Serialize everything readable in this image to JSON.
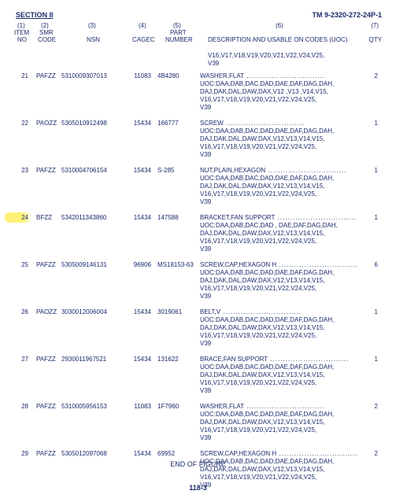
{
  "header": {
    "section": "SECTION II",
    "tm": "TM 9-2320-272-24P-1"
  },
  "cols": {
    "c1a": "(1)",
    "c1b": "ITEM",
    "c1c": "NO",
    "c2a": "(2)",
    "c2b": "SMR",
    "c2c": "CODE",
    "c3a": "(3)",
    "c3b": "NSN",
    "c4a": "(4)",
    "c4b": "CAGEC",
    "c5a": "(5)",
    "c5b": "PART",
    "c5c": "NUMBER",
    "c6a": "(6)",
    "c6b": "DESCRIPTION AND USABLE ON CODES (UOC)",
    "c7a": "(7)",
    "c7b": "QTY"
  },
  "lead": "V16,V17,V18,V19,V20,V21,V22,V24,V25,\nV39",
  "rows": [
    {
      "item": "21",
      "smr": "PAFZZ",
      "nsn": "5310009307013",
      "cage": "11083",
      "part": "4B4280",
      "title": "WASHER,FLAT",
      "qty": "2",
      "uoc": "UOC:DAA,DAB,DAC,DAD,DAE,DAF,DAG,DAH,\nDAJ,DAK,DAL,DAW,DAX,V12 ,V13 ,V14,V15,\nV16,V17,V18,V19,V20,V21,V22,V24,V25,\nV39"
    },
    {
      "item": "22",
      "smr": "PAOZZ",
      "nsn": "5305010912498",
      "cage": "15434",
      "part": "166777",
      "title": "SCREW",
      "qty": "1",
      "uoc": "UOC:DAA,DAB,DAC,DAD,DAE,DAF,DAG,DAH,\nDAJ,DAK,DAL,DAW,DAX,V12,V13,V14,V15,\nV16,V17,V18,V19,V20,V21,V22,V24,V25,\nV39"
    },
    {
      "item": "23",
      "smr": "PAFZZ",
      "nsn": "5310004706154",
      "cage": "15434",
      "part": "S-285",
      "title": "NUT,PLAIN,HEXAGON",
      "qty": "1",
      "uoc": "UOC:DAA,DAB,DAC,DAD,DAE,DAF,DAG,DAH,\nDAJ,DAK,DAL,DAW,DAX,V12,V13,V14,V15,\nV16,V17,V18,V19,V20,V21,V22,V24,V25,\nV39"
    },
    {
      "item": "24",
      "smr": "BFZZ",
      "nsn": "5342011343860",
      "cage": "15434",
      "part": "147588",
      "highlight": true,
      "title": "BRACKET,FAN SUPPORT",
      "qty": "1",
      "uoc": "UOC:DAA,DAB,DAC,DAD , DAE,DAF,DAG,DAH,\nDAJ,DAK,DAL,DAW,DAX,V12,V13,V14,V15,\nV16,V17,V18,V19,V20,V21,V22,V24,V25,\nV39"
    },
    {
      "item": "25",
      "smr": "PAFZZ",
      "nsn": "5305009146131",
      "cage": "96906",
      "part": "MS18153-63",
      "title": "SCREW,CAP,HEXAGON H",
      "qty": "6",
      "uoc": "UOC:DAA,DAB,DAC,DAD,DAE,DAF,DAG,DAH,\nDAJ,DAK,DAL,DAW,DAX,V12,V13,V14,V15,\nV16,V17,V18,V19,V20,V21,V22,V24,V25,\nV39"
    },
    {
      "item": "26",
      "smr": "PAOZZ",
      "nsn": "3030012006004",
      "cage": "15434",
      "part": "3019061",
      "title": "BELT,V",
      "qty": "1",
      "uoc": "UOC:DAA,DAB,DAC,DAD,DAE,DAF,DAG,DAH,\nDAJ,DAK,DAL,DAW,DAX,V12,V13,V14,V15,\nV16,V17,V18,V19,V20,V21,V22,V24,V25,\nV39"
    },
    {
      "item": "27",
      "smr": "PAFZZ",
      "nsn": "2930011967521",
      "cage": "15434",
      "part": "131622",
      "title": "BRACE,FAN SUPPORT",
      "qty": "1",
      "uoc": "UOC:DAA,DAB,DAC,DAD,DAE,DAF,DAG,DAH,\nDAJ,DAK,DAL,DAW,DAX,V12,V13,V14,V15,\nV16,V17,V18,V19,V20,V21,V22,V24,V25,\nV39"
    },
    {
      "item": "28",
      "smr": "PAFZZ",
      "nsn": "5310005956153",
      "cage": "11083",
      "part": "1F7960",
      "title": "WASHER,FLAT",
      "qty": "2",
      "uoc": "UOC:DAA,DAB,DAC,DAD,DAE,DAF,DAG,DAH,\nDAJ,DAK,DAL,DAW,DAX,V12,V13,V14,V15,\nV16,V17,V18,V19,V20,V21,V22,V24,V25,\nV39"
    },
    {
      "item": "29",
      "smr": "PAFZZ",
      "nsn": "5305012097068",
      "cage": "15434",
      "part": "69952",
      "title": "SCREW,CAP,HEXAGON H",
      "qty": "2",
      "uoc": "UOC:DAA,DAB,DAC,DAD,DAE,DAF,DAG,DAH,\nDAJ,DAK,DAL,DAW,DAX,V12,V13,V14,V15,\nV16,V17,V18,V19,V20,V21,V22,V24,V25,\nV39"
    }
  ],
  "endtext": "END OF FIGURE",
  "pagenum": "118-3",
  "dotfill": " ..............................."
}
